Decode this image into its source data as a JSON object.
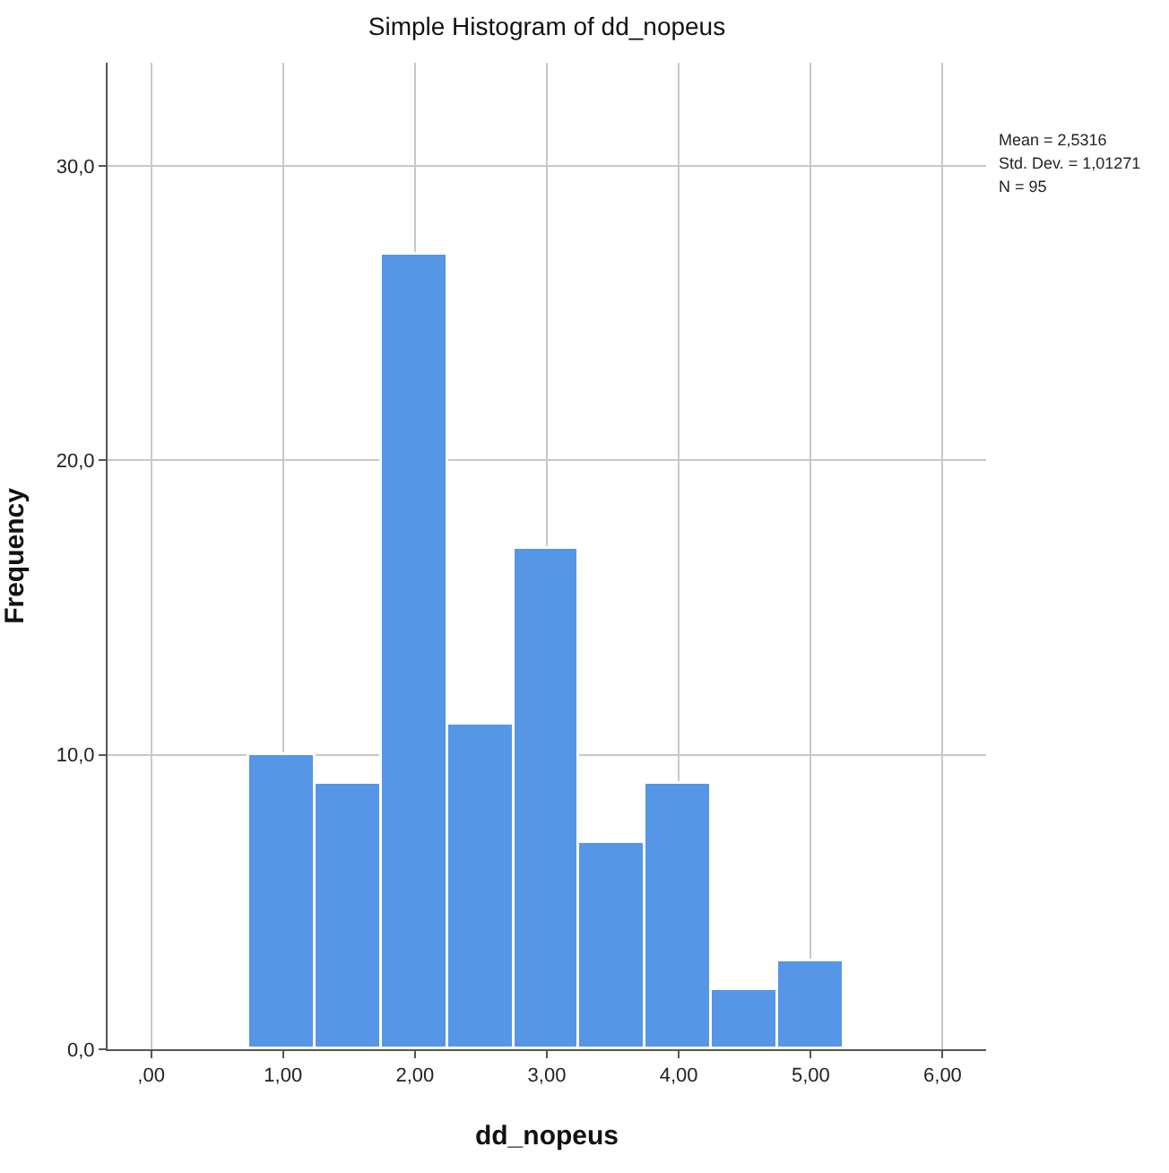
{
  "chart_data": {
    "type": "histogram",
    "title": "Simple Histogram of dd_nopeus",
    "xlabel": "dd_nopeus",
    "ylabel": "Frequency",
    "bins": [
      0.75,
      1.25,
      1.75,
      2.25,
      2.75,
      3.25,
      3.75,
      4.25,
      4.75,
      5.25
    ],
    "values": [
      10,
      9,
      27,
      11,
      17,
      7,
      9,
      2,
      3
    ],
    "color": "#5596e6",
    "xlim": [
      -0.33,
      6.33
    ],
    "xticks": [
      {
        "value": 0,
        "label": ",00"
      },
      {
        "value": 1,
        "label": "1,00"
      },
      {
        "value": 2,
        "label": "2,00"
      },
      {
        "value": 3,
        "label": "3,00"
      },
      {
        "value": 4,
        "label": "4,00"
      },
      {
        "value": 5,
        "label": "5,00"
      },
      {
        "value": 6,
        "label": "6,00"
      }
    ],
    "ylim": [
      0,
      33.5
    ],
    "yticks": [
      {
        "value": 0,
        "label": "0,0"
      },
      {
        "value": 10,
        "label": "10,0"
      },
      {
        "value": 20,
        "label": "20,0"
      },
      {
        "value": 30,
        "label": "30,0"
      }
    ],
    "grid": true,
    "annotations": [
      "Mean = 2,5316",
      "Std. Dev. = 1,01271",
      "N = 95"
    ]
  }
}
